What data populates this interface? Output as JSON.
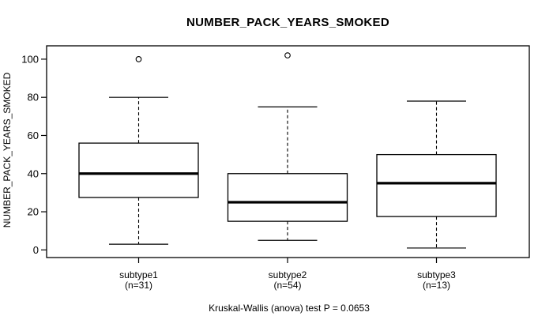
{
  "colors": {
    "foreground": "#000000",
    "background": "#ffffff",
    "box_fill": "#ffffff"
  },
  "chart_data": {
    "type": "boxplot",
    "title": "NUMBER_PACK_YEARS_SMOKED",
    "ylabel": "NUMBER_PACK_YEARS_SMOKED",
    "xlabel": "",
    "yticks": [
      0,
      20,
      40,
      60,
      80,
      100
    ],
    "ylim": [
      -4,
      107
    ],
    "grid": false,
    "legend": "none",
    "categories": [
      "subtype1",
      "subtype2",
      "subtype3"
    ],
    "category_sublabels": [
      "(n=31)",
      "(n=54)",
      "(n=13)"
    ],
    "boxes": [
      {
        "label": "subtype1",
        "sublabel": "(n=31)",
        "n": 31,
        "whisker_low": 3,
        "q1": 27.5,
        "median": 40,
        "q3": 56,
        "whisker_high": 80,
        "outliers": [
          100
        ]
      },
      {
        "label": "subtype2",
        "sublabel": "(n=54)",
        "n": 54,
        "whisker_low": 5,
        "q1": 15,
        "median": 25,
        "q3": 40,
        "whisker_high": 75,
        "outliers": [
          102
        ]
      },
      {
        "label": "subtype3",
        "sublabel": "(n=13)",
        "n": 13,
        "whisker_low": 1,
        "q1": 17.5,
        "median": 35,
        "q3": 50,
        "whisker_high": 78,
        "outliers": []
      }
    ],
    "footnote": "Kruskal-Wallis (anova) test P = 0.0653"
  }
}
